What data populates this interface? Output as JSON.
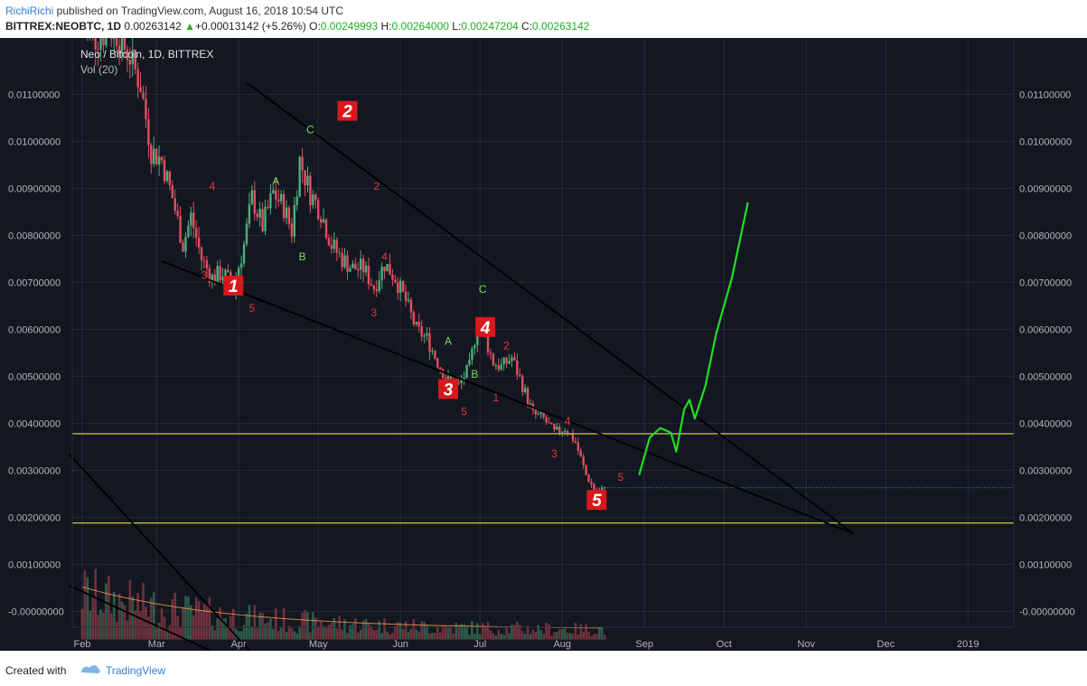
{
  "header": {
    "user": "RichiRichi",
    "published_text": " published on TradingView.com, August 16, 2018 10:54 UTC",
    "symbol": "BITTREX:NEOBTC, 1D",
    "last": "0.00263142",
    "change": "+0.00013142 (+5.26%)",
    "o_label": "O:",
    "o_value": "0.00249993",
    "h_label": "H:",
    "h_value": "0.00264000",
    "l_label": "L:",
    "l_value": "0.00247204",
    "c_label": "C:",
    "c_value": "0.00263142"
  },
  "legend": {
    "title": "Neo / Bitcoin, 1D, BITTREX",
    "volume": "Vol (20)"
  },
  "footer": {
    "created": "Created with",
    "brand": "TradingView"
  },
  "colors": {
    "background": "#131722",
    "up_candle": "#4caf7a",
    "down_candle": "#e0505e",
    "trendline": "#000000",
    "horizontal_level": "#cccc33",
    "projection": "#22dd22",
    "wave_label_red": "#e53935",
    "wave_label_green": "#7ddc5a",
    "box_label_bg": "#d8181c"
  },
  "chart_data": {
    "type": "candlestick",
    "title": "Neo / Bitcoin, 1D, BITTREX",
    "x_ticks": [
      "Feb",
      "Mar",
      "Apr",
      "May",
      "Jun",
      "Jul",
      "Aug",
      "Sep",
      "Oct",
      "Nov",
      "Dec",
      "2019"
    ],
    "y_ticks": [
      "0.01100000",
      "0.01000000",
      "0.00900000",
      "0.00800000",
      "0.00700000",
      "0.00600000",
      "0.00500000",
      "0.00400000",
      "0.00300000",
      "0.00200000",
      "0.00100000",
      "-0.00000000"
    ],
    "ylim": [
      -0.0008,
      0.0119
    ],
    "series_path": [
      {
        "d": 0,
        "v": 0.0123
      },
      {
        "d": 5,
        "v": 0.0122
      },
      {
        "d": 12,
        "v": 0.0124
      },
      {
        "d": 18,
        "v": 0.0118
      },
      {
        "d": 22,
        "v": 0.0112
      },
      {
        "d": 26,
        "v": 0.0098
      },
      {
        "d": 30,
        "v": 0.0096
      },
      {
        "d": 34,
        "v": 0.0088
      },
      {
        "d": 38,
        "v": 0.0078
      },
      {
        "d": 41,
        "v": 0.0084
      },
      {
        "d": 45,
        "v": 0.0075
      },
      {
        "d": 49,
        "v": 0.0071
      },
      {
        "d": 53,
        "v": 0.0072
      },
      {
        "d": 57,
        "v": 0.0069
      },
      {
        "d": 61,
        "v": 0.0078
      },
      {
        "d": 64,
        "v": 0.0088
      },
      {
        "d": 68,
        "v": 0.0082
      },
      {
        "d": 72,
        "v": 0.0089
      },
      {
        "d": 76,
        "v": 0.0086
      },
      {
        "d": 79,
        "v": 0.0081
      },
      {
        "d": 82,
        "v": 0.0096
      },
      {
        "d": 86,
        "v": 0.0089
      },
      {
        "d": 90,
        "v": 0.0085
      },
      {
        "d": 94,
        "v": 0.0078
      },
      {
        "d": 98,
        "v": 0.0075
      },
      {
        "d": 102,
        "v": 0.0073
      },
      {
        "d": 106,
        "v": 0.0073
      },
      {
        "d": 110,
        "v": 0.0069
      },
      {
        "d": 114,
        "v": 0.0074
      },
      {
        "d": 118,
        "v": 0.0071
      },
      {
        "d": 122,
        "v": 0.0066
      },
      {
        "d": 126,
        "v": 0.006
      },
      {
        "d": 130,
        "v": 0.0058
      },
      {
        "d": 134,
        "v": 0.0053
      },
      {
        "d": 138,
        "v": 0.0049
      },
      {
        "d": 142,
        "v": 0.0048
      },
      {
        "d": 146,
        "v": 0.0052
      },
      {
        "d": 149,
        "v": 0.0061
      },
      {
        "d": 152,
        "v": 0.0058
      },
      {
        "d": 155,
        "v": 0.0053
      },
      {
        "d": 158,
        "v": 0.0052
      },
      {
        "d": 162,
        "v": 0.0054
      },
      {
        "d": 166,
        "v": 0.0048
      },
      {
        "d": 170,
        "v": 0.0042
      },
      {
        "d": 174,
        "v": 0.0041
      },
      {
        "d": 178,
        "v": 0.0038
      },
      {
        "d": 182,
        "v": 0.0039
      },
      {
        "d": 186,
        "v": 0.0036
      },
      {
        "d": 190,
        "v": 0.0029
      },
      {
        "d": 194,
        "v": 0.0025
      },
      {
        "d": 197,
        "v": 0.00263
      }
    ],
    "volume_baseline": -0.0006,
    "trendlines": [
      {
        "d1": 62,
        "v1": 0.01125,
        "d2": 291,
        "v2": 0.00165
      },
      {
        "d1": 30,
        "v1": 0.00745,
        "d2": 291,
        "v2": 0.00165
      },
      {
        "d1": -5,
        "v1": 0.00335,
        "d2": 63,
        "v2": -0.00083
      },
      {
        "d1": -5,
        "v1": 0.00055,
        "d2": 48,
        "v2": -0.00083
      }
    ],
    "horizontal_levels": [
      0.00378,
      0.00188
    ],
    "current_price": 0.00263142,
    "projection_path": [
      {
        "d": 210,
        "v": 0.0029
      },
      {
        "d": 214,
        "v": 0.0037
      },
      {
        "d": 218,
        "v": 0.0039
      },
      {
        "d": 222,
        "v": 0.0038
      },
      {
        "d": 224,
        "v": 0.0034
      },
      {
        "d": 227,
        "v": 0.0043
      },
      {
        "d": 229,
        "v": 0.0045
      },
      {
        "d": 231,
        "v": 0.0041
      },
      {
        "d": 235,
        "v": 0.0048
      },
      {
        "d": 239,
        "v": 0.0059
      },
      {
        "d": 245,
        "v": 0.0071
      },
      {
        "d": 251,
        "v": 0.0087
      }
    ],
    "box_labels": [
      {
        "text": "1",
        "d": 57,
        "v": 0.00693
      },
      {
        "text": "2",
        "d": 100,
        "v": 0.01065
      },
      {
        "text": "3",
        "d": 138,
        "v": 0.00473
      },
      {
        "text": "4",
        "d": 152,
        "v": 0.00605
      },
      {
        "text": "5",
        "d": 194,
        "v": 0.00237
      }
    ],
    "wave_labels": [
      {
        "text": "4",
        "d": 49,
        "v": 0.00905,
        "c": "red"
      },
      {
        "text": "3",
        "d": 46,
        "v": 0.00715,
        "c": "red"
      },
      {
        "text": "5",
        "d": 64,
        "v": 0.00645,
        "c": "red"
      },
      {
        "text": "A",
        "d": 73,
        "v": 0.00915,
        "c": "green"
      },
      {
        "text": "B",
        "d": 83,
        "v": 0.00755,
        "c": "green"
      },
      {
        "text": "C",
        "d": 86,
        "v": 0.01025,
        "c": "green"
      },
      {
        "text": "2",
        "d": 111,
        "v": 0.00905,
        "c": "red"
      },
      {
        "text": "4",
        "d": 114,
        "v": 0.00755,
        "c": "red"
      },
      {
        "text": "3",
        "d": 110,
        "v": 0.00635,
        "c": "red"
      },
      {
        "text": "A",
        "d": 138,
        "v": 0.00575,
        "c": "green"
      },
      {
        "text": "C",
        "d": 151,
        "v": 0.00685,
        "c": "green"
      },
      {
        "text": "2",
        "d": 160,
        "v": 0.00565,
        "c": "red"
      },
      {
        "text": "B",
        "d": 148,
        "v": 0.00505,
        "c": "green"
      },
      {
        "text": "1",
        "d": 156,
        "v": 0.00455,
        "c": "red"
      },
      {
        "text": "5",
        "d": 144,
        "v": 0.00425,
        "c": "red"
      },
      {
        "text": "4",
        "d": 183,
        "v": 0.00405,
        "c": "red"
      },
      {
        "text": "3",
        "d": 178,
        "v": 0.00335,
        "c": "red"
      },
      {
        "text": "5",
        "d": 203,
        "v": 0.00285,
        "c": "red"
      }
    ]
  }
}
